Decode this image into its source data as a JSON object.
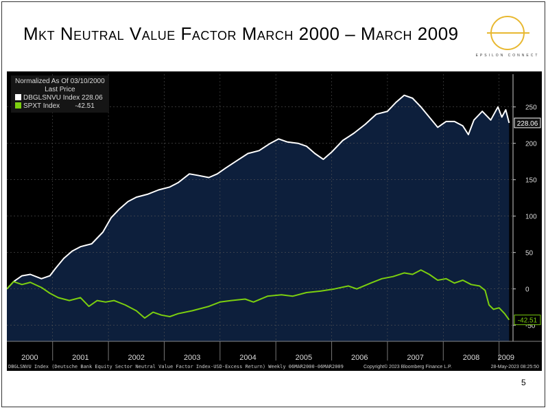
{
  "title": "Mkt Neutral Value Factor March 2000 – March 2009",
  "logo": {
    "text": "EPSILON CONNECT",
    "color": "#E8B830"
  },
  "page_number": "5",
  "chart_data": {
    "type": "line",
    "legend": {
      "header": "Normalized As Of 03/10/2000",
      "subheader": "Last Price",
      "placement": "top-left"
    },
    "x_ticks": [
      "2000",
      "2001",
      "2002",
      "2003",
      "2004",
      "2005",
      "2006",
      "2007",
      "2008",
      "2009"
    ],
    "y_ticks": [
      250,
      200,
      150,
      100,
      50,
      0,
      -50
    ],
    "ylim": [
      -72,
      295
    ],
    "xlim": [
      2000.18,
      2009.25
    ],
    "series": [
      {
        "name": "DBGLSNVU Index",
        "last": "228.06",
        "color": "#ffffff",
        "fill": "#0d1f3c",
        "points": [
          [
            2000.18,
            0
          ],
          [
            2000.3,
            10
          ],
          [
            2000.45,
            18
          ],
          [
            2000.6,
            20
          ],
          [
            2000.8,
            14
          ],
          [
            2000.95,
            18
          ],
          [
            2001.05,
            28
          ],
          [
            2001.2,
            42
          ],
          [
            2001.35,
            52
          ],
          [
            2001.5,
            58
          ],
          [
            2001.7,
            62
          ],
          [
            2001.9,
            78
          ],
          [
            2002.05,
            98
          ],
          [
            2002.2,
            110
          ],
          [
            2002.35,
            120
          ],
          [
            2002.5,
            126
          ],
          [
            2002.7,
            130
          ],
          [
            2002.9,
            136
          ],
          [
            2003.1,
            140
          ],
          [
            2003.25,
            146
          ],
          [
            2003.45,
            158
          ],
          [
            2003.6,
            156
          ],
          [
            2003.8,
            153
          ],
          [
            2003.95,
            158
          ],
          [
            2004.1,
            166
          ],
          [
            2004.3,
            176
          ],
          [
            2004.5,
            186
          ],
          [
            2004.7,
            190
          ],
          [
            2004.9,
            200
          ],
          [
            2005.05,
            206
          ],
          [
            2005.2,
            202
          ],
          [
            2005.4,
            200
          ],
          [
            2005.55,
            196
          ],
          [
            2005.7,
            186
          ],
          [
            2005.85,
            178
          ],
          [
            2006.0,
            188
          ],
          [
            2006.2,
            204
          ],
          [
            2006.4,
            214
          ],
          [
            2006.6,
            226
          ],
          [
            2006.8,
            240
          ],
          [
            2007.0,
            244
          ],
          [
            2007.15,
            256
          ],
          [
            2007.3,
            266
          ],
          [
            2007.45,
            262
          ],
          [
            2007.6,
            250
          ],
          [
            2007.75,
            236
          ],
          [
            2007.9,
            222
          ],
          [
            2008.05,
            230
          ],
          [
            2008.2,
            230
          ],
          [
            2008.35,
            224
          ],
          [
            2008.45,
            212
          ],
          [
            2008.55,
            232
          ],
          [
            2008.7,
            244
          ],
          [
            2008.85,
            232
          ],
          [
            2008.98,
            250
          ],
          [
            2009.05,
            236
          ],
          [
            2009.12,
            246
          ],
          [
            2009.18,
            228.06
          ]
        ]
      },
      {
        "name": "SPXT Index",
        "last": "-42.51",
        "color": "#7ccf0f",
        "points": [
          [
            2000.18,
            0
          ],
          [
            2000.3,
            10
          ],
          [
            2000.45,
            6
          ],
          [
            2000.6,
            9
          ],
          [
            2000.8,
            2
          ],
          [
            2000.95,
            -6
          ],
          [
            2001.1,
            -12
          ],
          [
            2001.3,
            -16
          ],
          [
            2001.5,
            -12
          ],
          [
            2001.65,
            -24
          ],
          [
            2001.8,
            -16
          ],
          [
            2001.95,
            -18
          ],
          [
            2002.1,
            -16
          ],
          [
            2002.3,
            -22
          ],
          [
            2002.5,
            -30
          ],
          [
            2002.65,
            -40
          ],
          [
            2002.8,
            -32
          ],
          [
            2002.95,
            -36
          ],
          [
            2003.1,
            -38
          ],
          [
            2003.25,
            -34
          ],
          [
            2003.5,
            -30
          ],
          [
            2003.8,
            -24
          ],
          [
            2004.0,
            -18
          ],
          [
            2004.2,
            -16
          ],
          [
            2004.45,
            -14
          ],
          [
            2004.6,
            -18
          ],
          [
            2004.85,
            -10
          ],
          [
            2005.1,
            -8
          ],
          [
            2005.3,
            -10
          ],
          [
            2005.55,
            -5
          ],
          [
            2005.8,
            -3
          ],
          [
            2006.05,
            0
          ],
          [
            2006.3,
            4
          ],
          [
            2006.45,
            0
          ],
          [
            2006.7,
            8
          ],
          [
            2006.9,
            14
          ],
          [
            2007.1,
            17
          ],
          [
            2007.3,
            22
          ],
          [
            2007.45,
            20
          ],
          [
            2007.6,
            26
          ],
          [
            2007.75,
            20
          ],
          [
            2007.9,
            12
          ],
          [
            2008.05,
            14
          ],
          [
            2008.2,
            8
          ],
          [
            2008.35,
            12
          ],
          [
            2008.5,
            6
          ],
          [
            2008.65,
            4
          ],
          [
            2008.75,
            -2
          ],
          [
            2008.82,
            -22
          ],
          [
            2008.9,
            -28
          ],
          [
            2009.0,
            -26
          ],
          [
            2009.1,
            -34
          ],
          [
            2009.18,
            -42.51
          ]
        ]
      }
    ]
  },
  "footer": {
    "description": "DBGLSNVU Index (Deutsche Bank Equity Sector Neutral Value Factor Index-USD-Excess Return) Weekly 06MAR2000-06MAR2009",
    "copyright": "Copyright© 2023 Bloomberg Finance L.P.",
    "timestamp": "28-May-2023 08:25:50"
  }
}
